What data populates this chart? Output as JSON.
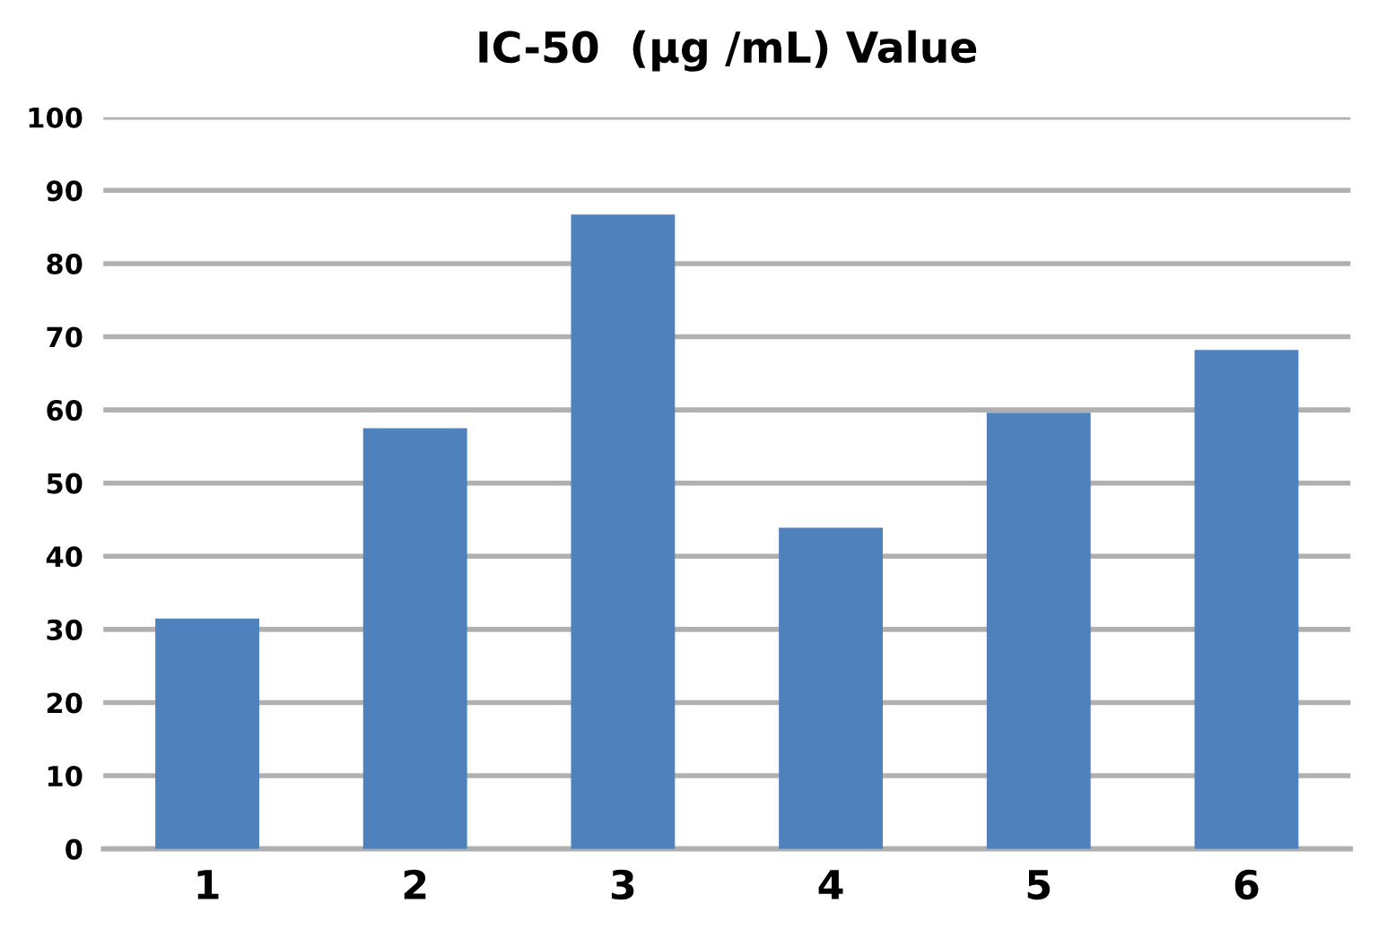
{
  "chart_data": {
    "type": "bar",
    "title": "IC-50  (µg /mL) Value",
    "categories": [
      "1",
      "2",
      "3",
      "4",
      "5",
      "6"
    ],
    "values": [
      31.5,
      57.5,
      86.7,
      43.9,
      59.6,
      68.2
    ],
    "color": "#4f81bd",
    "ylim": [
      0,
      100
    ],
    "yticks": [
      0,
      10,
      20,
      30,
      40,
      50,
      60,
      70,
      80,
      90,
      100
    ],
    "grid": "y"
  }
}
